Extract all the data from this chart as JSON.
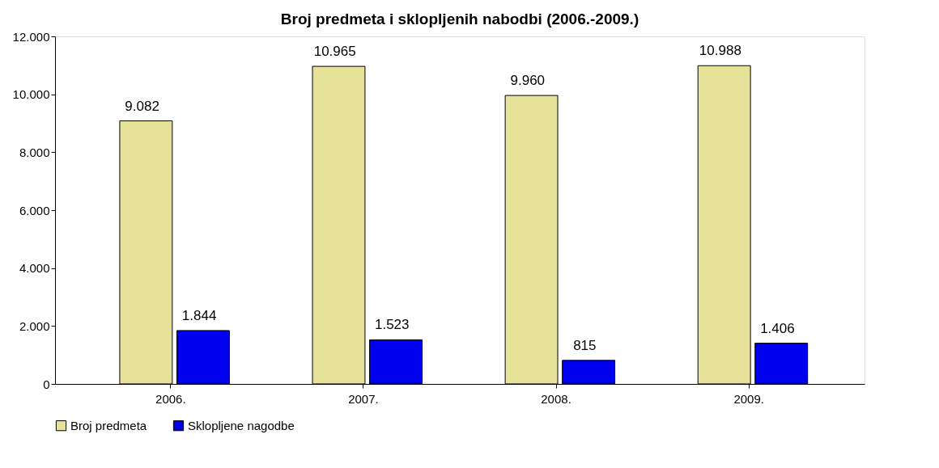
{
  "chart_data": {
    "type": "bar",
    "title": "Broj predmeta i sklopljenih nabodbi (2006.-2009.)",
    "categories": [
      "2006.",
      "2007.",
      "2008.",
      "2009."
    ],
    "series": [
      {
        "name": "Broj predmeta",
        "color": "#e6e29a",
        "values": [
          9082,
          10965,
          9960,
          10988
        ],
        "value_labels": [
          "9.082",
          "10.965",
          "9.960",
          "10.988"
        ]
      },
      {
        "name": "Sklopljene nagodbe",
        "color": "#0000ee",
        "values": [
          1844,
          1523,
          815,
          1406
        ],
        "value_labels": [
          "1.844",
          "1.523",
          "815",
          "1.406"
        ]
      }
    ],
    "ylim": [
      0,
      12000
    ],
    "yticks": [
      {
        "value": 0,
        "label": "0"
      },
      {
        "value": 2000,
        "label": "2.000"
      },
      {
        "value": 4000,
        "label": "4.000"
      },
      {
        "value": 6000,
        "label": "6.000"
      },
      {
        "value": 8000,
        "label": "8.000"
      },
      {
        "value": 10000,
        "label": "10.000"
      },
      {
        "value": 12000,
        "label": "12.000"
      }
    ],
    "grid": false,
    "legend": "bottom"
  }
}
